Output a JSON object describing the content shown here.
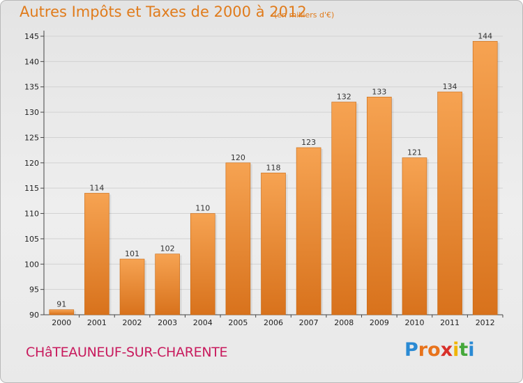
{
  "title": "Autres Impôts et Taxes de 2000 à 2012",
  "subtitle": "(en milliers d'€)",
  "commune": "CHâTEAUNEUF-SUR-CHARENTE",
  "logo": {
    "letters": [
      "P",
      "r",
      "o",
      "x",
      "i",
      "t",
      "i"
    ],
    "colors": [
      "#2a8ad4",
      "#e8731c",
      "#e8731c",
      "#d8302a",
      "#f0b400",
      "#45a83a",
      "#2a8ad4"
    ]
  },
  "colors": {
    "bar_light": "#f6a352",
    "bar_dark": "#d8721c",
    "title": "#e07b1b",
    "commune": "#c81a5d"
  },
  "chart_data": {
    "type": "bar",
    "categories": [
      "2000",
      "2001",
      "2002",
      "2003",
      "2004",
      "2005",
      "2006",
      "2007",
      "2008",
      "2009",
      "2010",
      "2011",
      "2012"
    ],
    "values": [
      91,
      114,
      101,
      102,
      110,
      120,
      118,
      123,
      132,
      133,
      121,
      134,
      144
    ],
    "data_labels": [
      "91",
      "114",
      "101",
      "102",
      "110",
      "120",
      "118",
      "123",
      "132",
      "133",
      "121",
      "134",
      "144"
    ],
    "title": "Autres Impôts et Taxes de 2000 à 2012",
    "subtitle": "(en milliers d'€)",
    "ylim": [
      90,
      145
    ],
    "yticks": [
      90,
      95,
      100,
      105,
      110,
      115,
      120,
      125,
      130,
      135,
      140,
      145
    ],
    "grid": true
  }
}
